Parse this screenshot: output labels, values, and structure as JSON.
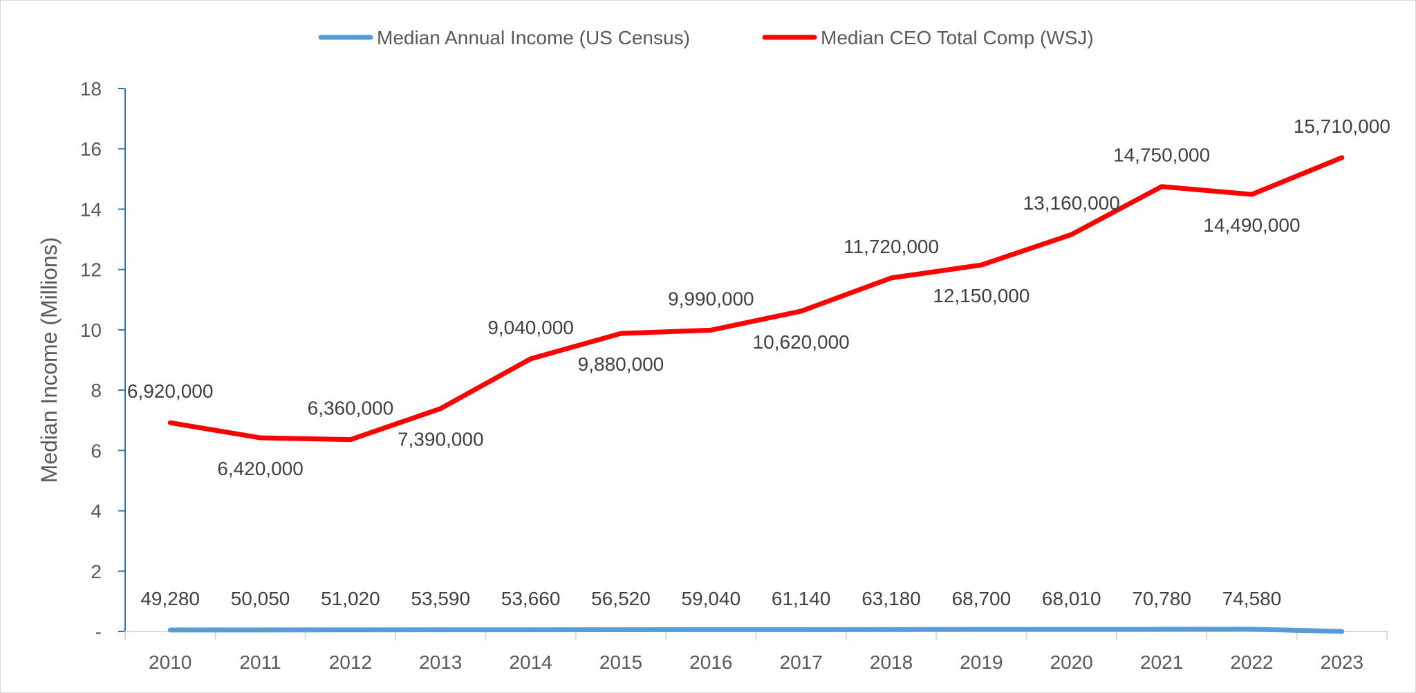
{
  "chart_data": {
    "type": "line",
    "title": "",
    "xlabel": "",
    "ylabel": "Median Income (Millions)",
    "categories": [
      "2010",
      "2011",
      "2012",
      "2013",
      "2014",
      "2015",
      "2016",
      "2017",
      "2018",
      "2019",
      "2020",
      "2021",
      "2022",
      "2023"
    ],
    "ylim": [
      0,
      18
    ],
    "y_ticks": [
      0,
      2,
      4,
      6,
      8,
      10,
      12,
      14,
      16,
      18
    ],
    "y_tick_labels": [
      "-",
      "2",
      "4",
      "6",
      "8",
      "10",
      "12",
      "14",
      "16",
      "18"
    ],
    "y_scale_note": "values in dollars; axis shown in millions",
    "grid": false,
    "legend_position": "top",
    "series": [
      {
        "name": "Median Annual Income (US Census)",
        "color": "#5B9BD5",
        "values": [
          49280,
          50050,
          51020,
          53590,
          53660,
          56520,
          59040,
          61140,
          63180,
          68700,
          68010,
          70780,
          74580,
          0
        ],
        "data_labels": [
          "49,280",
          "50,050",
          "51,020",
          "53,590",
          "53,660",
          "56,520",
          "59,040",
          "61,140",
          "63,180",
          "68,700",
          "68,010",
          "70,780",
          "74,580",
          ""
        ]
      },
      {
        "name": "Median CEO Total Comp (WSJ)",
        "color": "#FF0000",
        "values": [
          6920000,
          6420000,
          6360000,
          7390000,
          9040000,
          9880000,
          9990000,
          10620000,
          11720000,
          12150000,
          13160000,
          14750000,
          14490000,
          15710000
        ],
        "data_labels": [
          "6,920,000",
          "6,420,000",
          "6,360,000",
          "7,390,000",
          "9,040,000",
          "9,880,000",
          "9,990,000",
          "10,620,000",
          "11,720,000",
          "12,150,000",
          "13,160,000",
          "14,750,000",
          "14,490,000",
          "15,710,000"
        ]
      }
    ]
  }
}
